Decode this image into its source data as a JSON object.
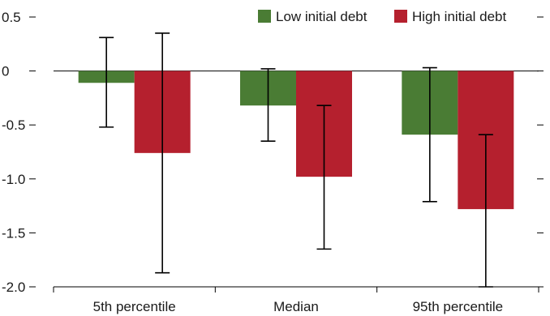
{
  "chart_data": {
    "type": "bar",
    "categories": [
      "5th percentile",
      "Median",
      "95th percentile"
    ],
    "series": [
      {
        "name": "Low initial debt",
        "color": "#4a7c34",
        "values": [
          -0.11,
          -0.32,
          -0.59
        ],
        "error_low": [
          -0.52,
          -0.65,
          -1.21
        ],
        "error_high": [
          0.31,
          0.02,
          0.03
        ]
      },
      {
        "name": "High initial debt",
        "color": "#b5202e",
        "values": [
          -0.76,
          -0.98,
          -1.28
        ],
        "error_low": [
          -1.87,
          -1.65,
          -2.0
        ],
        "error_high": [
          0.35,
          -0.32,
          -0.59
        ]
      }
    ],
    "ylim": [
      -2.0,
      0.5
    ],
    "yticks": [
      0.5,
      0,
      -0.5,
      -1.0,
      -1.5,
      -2.0
    ],
    "ytick_labels": [
      "0.5",
      "0",
      "-0.5",
      "-1.0",
      "-1.5",
      "-2.0"
    ],
    "legend_position": "top-right",
    "grid": false
  }
}
